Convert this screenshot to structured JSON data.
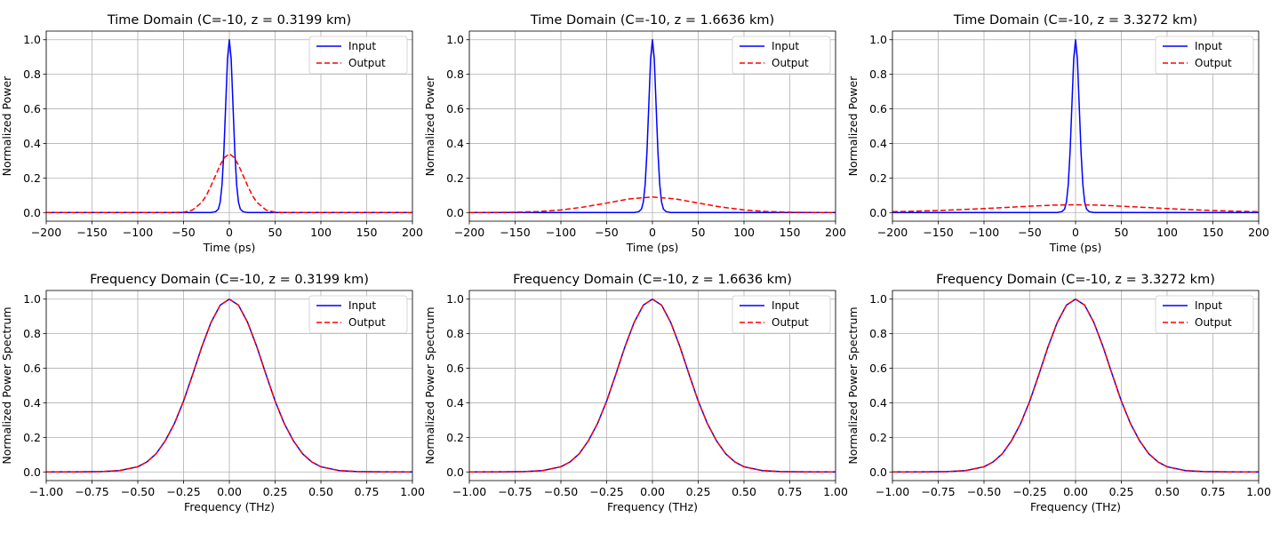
{
  "legend_placement": "top-right",
  "series_colors": {
    "input": "#0000ff",
    "output": "#ff0000"
  },
  "chart_data": [
    {
      "type": "line",
      "title": "Time Domain (C=-10, z = 0.3199 km)",
      "xlabel": "Time (ps)",
      "ylabel": "Normalized Power",
      "xlim": [
        -200,
        200
      ],
      "ylim": [
        -0.05,
        1.05
      ],
      "xticks": [
        -200,
        -150,
        -100,
        -50,
        0,
        50,
        100,
        150,
        200
      ],
      "xtick_labels": [
        "−200",
        "−150",
        "−100",
        "−50",
        "0",
        "50",
        "100",
        "150",
        "200"
      ],
      "yticks": [
        0.0,
        0.2,
        0.4,
        0.6,
        0.8,
        1.0
      ],
      "ytick_labels": [
        "0.0",
        "0.2",
        "0.4",
        "0.6",
        "0.8",
        "1.0"
      ],
      "grid": true,
      "legend_position": "top-right",
      "series": [
        {
          "name": "Input",
          "style": "solid",
          "x": [
            -200,
            -20,
            -15,
            -12,
            -10,
            -8,
            -6,
            -4,
            -2,
            0,
            2,
            4,
            6,
            8,
            10,
            12,
            15,
            20,
            200
          ],
          "y": [
            0,
            0,
            0.005,
            0.02,
            0.06,
            0.16,
            0.35,
            0.62,
            0.89,
            1.0,
            0.89,
            0.62,
            0.35,
            0.16,
            0.06,
            0.02,
            0.005,
            0,
            0
          ]
        },
        {
          "name": "Output",
          "style": "dashed",
          "x": [
            -200,
            -60,
            -50,
            -40,
            -30,
            -25,
            -20,
            -15,
            -10,
            -5,
            0,
            5,
            10,
            15,
            20,
            25,
            30,
            40,
            50,
            60,
            200
          ],
          "y": [
            0,
            0,
            0.002,
            0.015,
            0.06,
            0.1,
            0.155,
            0.215,
            0.275,
            0.32,
            0.34,
            0.32,
            0.275,
            0.215,
            0.155,
            0.1,
            0.06,
            0.015,
            0.002,
            0,
            0
          ]
        }
      ]
    },
    {
      "type": "line",
      "title": "Time Domain (C=-10, z = 1.6636 km)",
      "xlabel": "Time (ps)",
      "ylabel": "Normalized Power",
      "xlim": [
        -200,
        200
      ],
      "ylim": [
        -0.05,
        1.05
      ],
      "xticks": [
        -200,
        -150,
        -100,
        -50,
        0,
        50,
        100,
        150,
        200
      ],
      "xtick_labels": [
        "−200",
        "−150",
        "−100",
        "−50",
        "0",
        "50",
        "100",
        "150",
        "200"
      ],
      "yticks": [
        0.0,
        0.2,
        0.4,
        0.6,
        0.8,
        1.0
      ],
      "ytick_labels": [
        "0.0",
        "0.2",
        "0.4",
        "0.6",
        "0.8",
        "1.0"
      ],
      "grid": true,
      "legend_position": "top-right",
      "series": [
        {
          "name": "Input",
          "style": "solid",
          "x": [
            -200,
            -20,
            -15,
            -12,
            -10,
            -8,
            -6,
            -4,
            -2,
            0,
            2,
            4,
            6,
            8,
            10,
            12,
            15,
            20,
            200
          ],
          "y": [
            0,
            0,
            0.005,
            0.02,
            0.06,
            0.16,
            0.35,
            0.62,
            0.89,
            1.0,
            0.89,
            0.62,
            0.35,
            0.16,
            0.06,
            0.02,
            0.005,
            0,
            0
          ]
        },
        {
          "name": "Output",
          "style": "dashed",
          "x": [
            -200,
            -175,
            -150,
            -125,
            -100,
            -75,
            -50,
            -25,
            0,
            25,
            50,
            75,
            100,
            125,
            150,
            175,
            200
          ],
          "y": [
            0,
            0.0005,
            0.002,
            0.006,
            0.015,
            0.032,
            0.055,
            0.079,
            0.09,
            0.079,
            0.055,
            0.032,
            0.015,
            0.006,
            0.002,
            0.0005,
            0
          ]
        }
      ]
    },
    {
      "type": "line",
      "title": "Time Domain (C=-10, z = 3.3272 km)",
      "xlabel": "Time (ps)",
      "ylabel": "Normalized Power",
      "xlim": [
        -200,
        200
      ],
      "ylim": [
        -0.05,
        1.05
      ],
      "xticks": [
        -200,
        -150,
        -100,
        -50,
        0,
        50,
        100,
        150,
        200
      ],
      "xtick_labels": [
        "−200",
        "−150",
        "−100",
        "−50",
        "0",
        "50",
        "100",
        "150",
        "200"
      ],
      "yticks": [
        0.0,
        0.2,
        0.4,
        0.6,
        0.8,
        1.0
      ],
      "ytick_labels": [
        "0.0",
        "0.2",
        "0.4",
        "0.6",
        "0.8",
        "1.0"
      ],
      "grid": true,
      "legend_position": "top-right",
      "series": [
        {
          "name": "Input",
          "style": "solid",
          "x": [
            -200,
            -20,
            -15,
            -12,
            -10,
            -8,
            -6,
            -4,
            -2,
            0,
            2,
            4,
            6,
            8,
            10,
            12,
            15,
            20,
            200
          ],
          "y": [
            0,
            0,
            0.005,
            0.02,
            0.06,
            0.16,
            0.35,
            0.62,
            0.89,
            1.0,
            0.89,
            0.62,
            0.35,
            0.16,
            0.06,
            0.02,
            0.005,
            0,
            0
          ]
        },
        {
          "name": "Output",
          "style": "dashed",
          "x": [
            -200,
            -175,
            -150,
            -125,
            -100,
            -75,
            -50,
            -25,
            0,
            25,
            50,
            75,
            100,
            125,
            150,
            175,
            200
          ],
          "y": [
            0.005,
            0.008,
            0.012,
            0.017,
            0.023,
            0.03,
            0.037,
            0.043,
            0.045,
            0.043,
            0.037,
            0.03,
            0.023,
            0.017,
            0.012,
            0.008,
            0.005
          ]
        }
      ]
    },
    {
      "type": "line",
      "title": "Frequency Domain (C=-10, z = 0.3199 km)",
      "xlabel": "Frequency (THz)",
      "ylabel": "Normalized Power Spectrum",
      "xlim": [
        -1.0,
        1.0
      ],
      "ylim": [
        -0.05,
        1.05
      ],
      "xticks": [
        -1.0,
        -0.75,
        -0.5,
        -0.25,
        0.0,
        0.25,
        0.5,
        0.75,
        1.0
      ],
      "xtick_labels": [
        "−1.00",
        "−0.75",
        "−0.50",
        "−0.25",
        "0.00",
        "0.25",
        "0.50",
        "0.75",
        "1.00"
      ],
      "yticks": [
        0.0,
        0.2,
        0.4,
        0.6,
        0.8,
        1.0
      ],
      "ytick_labels": [
        "0.0",
        "0.2",
        "0.4",
        "0.6",
        "0.8",
        "1.0"
      ],
      "grid": true,
      "legend_position": "top-right",
      "series": [
        {
          "name": "Input",
          "style": "solid",
          "x": [
            -1.0,
            -0.8,
            -0.7,
            -0.6,
            -0.5,
            -0.45,
            -0.4,
            -0.35,
            -0.3,
            -0.25,
            -0.2,
            -0.15,
            -0.1,
            -0.05,
            0.0,
            0.05,
            0.1,
            0.15,
            0.2,
            0.25,
            0.3,
            0.35,
            0.4,
            0.45,
            0.5,
            0.6,
            0.7,
            0.8,
            1.0
          ],
          "y": [
            0,
            0.0005,
            0.002,
            0.008,
            0.03,
            0.058,
            0.105,
            0.18,
            0.28,
            0.41,
            0.565,
            0.725,
            0.865,
            0.965,
            1.0,
            0.965,
            0.865,
            0.725,
            0.565,
            0.41,
            0.28,
            0.18,
            0.105,
            0.058,
            0.03,
            0.008,
            0.002,
            0.0005,
            0
          ]
        },
        {
          "name": "Output",
          "style": "dashed",
          "x": [
            -1.0,
            -0.8,
            -0.7,
            -0.6,
            -0.5,
            -0.45,
            -0.4,
            -0.35,
            -0.3,
            -0.25,
            -0.2,
            -0.15,
            -0.1,
            -0.05,
            0.0,
            0.05,
            0.1,
            0.15,
            0.2,
            0.25,
            0.3,
            0.35,
            0.4,
            0.45,
            0.5,
            0.6,
            0.7,
            0.8,
            1.0
          ],
          "y": [
            0,
            0.0005,
            0.002,
            0.008,
            0.03,
            0.058,
            0.105,
            0.18,
            0.28,
            0.41,
            0.565,
            0.725,
            0.865,
            0.965,
            1.0,
            0.965,
            0.865,
            0.725,
            0.565,
            0.41,
            0.28,
            0.18,
            0.105,
            0.058,
            0.03,
            0.008,
            0.002,
            0.0005,
            0
          ]
        }
      ]
    },
    {
      "type": "line",
      "title": "Frequency Domain (C=-10, z = 1.6636 km)",
      "xlabel": "Frequency (THz)",
      "ylabel": "Normalized Power Spectrum",
      "xlim": [
        -1.0,
        1.0
      ],
      "ylim": [
        -0.05,
        1.05
      ],
      "xticks": [
        -1.0,
        -0.75,
        -0.5,
        -0.25,
        0.0,
        0.25,
        0.5,
        0.75,
        1.0
      ],
      "xtick_labels": [
        "−1.00",
        "−0.75",
        "−0.50",
        "−0.25",
        "0.00",
        "0.25",
        "0.50",
        "0.75",
        "1.00"
      ],
      "yticks": [
        0.0,
        0.2,
        0.4,
        0.6,
        0.8,
        1.0
      ],
      "ytick_labels": [
        "0.0",
        "0.2",
        "0.4",
        "0.6",
        "0.8",
        "1.0"
      ],
      "grid": true,
      "legend_position": "top-right",
      "series": [
        {
          "name": "Input",
          "style": "solid",
          "x": [
            -1.0,
            -0.8,
            -0.7,
            -0.6,
            -0.5,
            -0.45,
            -0.4,
            -0.35,
            -0.3,
            -0.25,
            -0.2,
            -0.15,
            -0.1,
            -0.05,
            0.0,
            0.05,
            0.1,
            0.15,
            0.2,
            0.25,
            0.3,
            0.35,
            0.4,
            0.45,
            0.5,
            0.6,
            0.7,
            0.8,
            1.0
          ],
          "y": [
            0,
            0.0005,
            0.002,
            0.008,
            0.03,
            0.058,
            0.105,
            0.18,
            0.28,
            0.41,
            0.565,
            0.725,
            0.865,
            0.965,
            1.0,
            0.965,
            0.865,
            0.725,
            0.565,
            0.41,
            0.28,
            0.18,
            0.105,
            0.058,
            0.03,
            0.008,
            0.002,
            0.0005,
            0
          ]
        },
        {
          "name": "Output",
          "style": "dashed",
          "x": [
            -1.0,
            -0.8,
            -0.7,
            -0.6,
            -0.5,
            -0.45,
            -0.4,
            -0.35,
            -0.3,
            -0.25,
            -0.2,
            -0.15,
            -0.1,
            -0.05,
            0.0,
            0.05,
            0.1,
            0.15,
            0.2,
            0.25,
            0.3,
            0.35,
            0.4,
            0.45,
            0.5,
            0.6,
            0.7,
            0.8,
            1.0
          ],
          "y": [
            0,
            0.0005,
            0.002,
            0.008,
            0.03,
            0.058,
            0.105,
            0.18,
            0.28,
            0.41,
            0.565,
            0.725,
            0.865,
            0.965,
            1.0,
            0.965,
            0.865,
            0.725,
            0.565,
            0.41,
            0.28,
            0.18,
            0.105,
            0.058,
            0.03,
            0.008,
            0.002,
            0.0005,
            0
          ]
        }
      ]
    },
    {
      "type": "line",
      "title": "Frequency Domain (C=-10, z = 3.3272 km)",
      "xlabel": "Frequency (THz)",
      "ylabel": "Normalized Power Spectrum",
      "xlim": [
        -1.0,
        1.0
      ],
      "ylim": [
        -0.05,
        1.05
      ],
      "xticks": [
        -1.0,
        -0.75,
        -0.5,
        -0.25,
        0.0,
        0.25,
        0.5,
        0.75,
        1.0
      ],
      "xtick_labels": [
        "−1.00",
        "−0.75",
        "−0.50",
        "−0.25",
        "0.00",
        "0.25",
        "0.50",
        "0.75",
        "1.00"
      ],
      "yticks": [
        0.0,
        0.2,
        0.4,
        0.6,
        0.8,
        1.0
      ],
      "ytick_labels": [
        "0.0",
        "0.2",
        "0.4",
        "0.6",
        "0.8",
        "1.0"
      ],
      "grid": true,
      "legend_position": "top-right",
      "series": [
        {
          "name": "Input",
          "style": "solid",
          "x": [
            -1.0,
            -0.8,
            -0.7,
            -0.6,
            -0.5,
            -0.45,
            -0.4,
            -0.35,
            -0.3,
            -0.25,
            -0.2,
            -0.15,
            -0.1,
            -0.05,
            0.0,
            0.05,
            0.1,
            0.15,
            0.2,
            0.25,
            0.3,
            0.35,
            0.4,
            0.45,
            0.5,
            0.6,
            0.7,
            0.8,
            1.0
          ],
          "y": [
            0,
            0.0005,
            0.002,
            0.008,
            0.03,
            0.058,
            0.105,
            0.18,
            0.28,
            0.41,
            0.565,
            0.725,
            0.865,
            0.965,
            1.0,
            0.965,
            0.865,
            0.725,
            0.565,
            0.41,
            0.28,
            0.18,
            0.105,
            0.058,
            0.03,
            0.008,
            0.002,
            0.0005,
            0
          ]
        },
        {
          "name": "Output",
          "style": "dashed",
          "x": [
            -1.0,
            -0.8,
            -0.7,
            -0.6,
            -0.5,
            -0.45,
            -0.4,
            -0.35,
            -0.3,
            -0.25,
            -0.2,
            -0.15,
            -0.1,
            -0.05,
            0.0,
            0.05,
            0.1,
            0.15,
            0.2,
            0.25,
            0.3,
            0.35,
            0.4,
            0.45,
            0.5,
            0.6,
            0.7,
            0.8,
            1.0
          ],
          "y": [
            0,
            0.0005,
            0.002,
            0.008,
            0.03,
            0.058,
            0.105,
            0.18,
            0.28,
            0.41,
            0.565,
            0.725,
            0.865,
            0.965,
            1.0,
            0.965,
            0.865,
            0.725,
            0.565,
            0.41,
            0.28,
            0.18,
            0.105,
            0.058,
            0.03,
            0.008,
            0.002,
            0.0005,
            0
          ]
        }
      ]
    }
  ]
}
